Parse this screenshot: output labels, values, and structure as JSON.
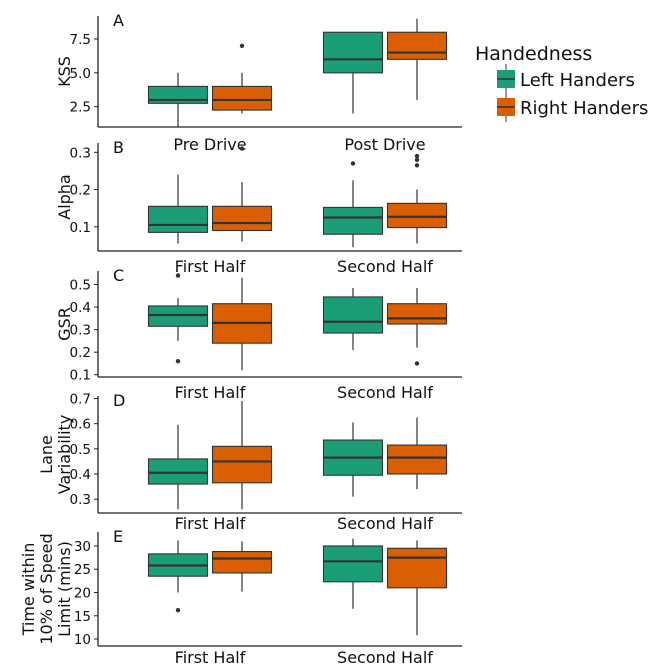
{
  "legend": {
    "title": "Handedness",
    "items": [
      {
        "label": "Left Handers",
        "color": "#1b9e77"
      },
      {
        "label": "Right Handers",
        "color": "#d95f02"
      }
    ]
  },
  "chart_data": [
    {
      "type": "box",
      "panel": "A",
      "ylabel": "KSS",
      "yticks": [
        2.5,
        5.0,
        7.5
      ],
      "ylim": [
        1,
        9.2
      ],
      "categories": [
        "Pre Drive",
        "Post Drive"
      ],
      "series": [
        {
          "name": "Left Handers",
          "boxes": [
            {
              "min": 1,
              "q1": 2.75,
              "median": 3,
              "q3": 4,
              "max": 5,
              "outliers": []
            },
            {
              "min": 2,
              "q1": 5,
              "median": 6,
              "q3": 8,
              "max": 8,
              "outliers": []
            }
          ]
        },
        {
          "name": "Right Handers",
          "boxes": [
            {
              "min": 2,
              "q1": 2.25,
              "median": 3,
              "q3": 4,
              "max": 5,
              "outliers": [
                7
              ]
            },
            {
              "min": 3,
              "q1": 6,
              "median": 6.5,
              "q3": 8,
              "max": 9,
              "outliers": []
            }
          ]
        }
      ]
    },
    {
      "type": "box",
      "panel": "B",
      "ylabel": "Alpha",
      "yticks": [
        0.1,
        0.2,
        0.3
      ],
      "ylim": [
        0.035,
        0.325
      ],
      "categories": [
        "First Half",
        "Second Half"
      ],
      "series": [
        {
          "name": "Left Handers",
          "boxes": [
            {
              "min": 0.055,
              "q1": 0.085,
              "median": 0.105,
              "q3": 0.155,
              "max": 0.24,
              "outliers": []
            },
            {
              "min": 0.045,
              "q1": 0.08,
              "median": 0.125,
              "q3": 0.152,
              "max": 0.225,
              "outliers": [
                0.27
              ]
            }
          ]
        },
        {
          "name": "Right Handers",
          "boxes": [
            {
              "min": 0.06,
              "q1": 0.09,
              "median": 0.11,
              "q3": 0.155,
              "max": 0.22,
              "outliers": [
                0.31
              ]
            },
            {
              "min": 0.055,
              "q1": 0.098,
              "median": 0.127,
              "q3": 0.163,
              "max": 0.2,
              "outliers": [
                0.265,
                0.28,
                0.29
              ]
            }
          ]
        }
      ]
    },
    {
      "type": "box",
      "panel": "C",
      "ylabel": "GSR",
      "yticks": [
        0.1,
        0.2,
        0.3,
        0.4,
        0.5
      ],
      "ylim": [
        0.09,
        0.56
      ],
      "categories": [
        "First Half",
        "Second Half"
      ],
      "series": [
        {
          "name": "Left Handers",
          "boxes": [
            {
              "min": 0.25,
              "q1": 0.315,
              "median": 0.365,
              "q3": 0.405,
              "max": 0.44,
              "outliers": [
                0.54,
                0.16
              ]
            },
            {
              "min": 0.21,
              "q1": 0.285,
              "median": 0.335,
              "q3": 0.445,
              "max": 0.485,
              "outliers": []
            }
          ]
        },
        {
          "name": "Right Handers",
          "boxes": [
            {
              "min": 0.12,
              "q1": 0.24,
              "median": 0.33,
              "q3": 0.415,
              "max": 0.53,
              "outliers": []
            },
            {
              "min": 0.22,
              "q1": 0.325,
              "median": 0.35,
              "q3": 0.415,
              "max": 0.485,
              "outliers": [
                0.15
              ]
            }
          ]
        }
      ]
    },
    {
      "type": "box",
      "panel": "D",
      "ylabel": "Lane Variability",
      "yticks": [
        0.3,
        0.4,
        0.5,
        0.6,
        0.7
      ],
      "ylim": [
        0.245,
        0.71
      ],
      "categories": [
        "First Half",
        "Second Half"
      ],
      "series": [
        {
          "name": "Left Handers",
          "boxes": [
            {
              "min": 0.26,
              "q1": 0.36,
              "median": 0.405,
              "q3": 0.46,
              "max": 0.595,
              "outliers": []
            },
            {
              "min": 0.31,
              "q1": 0.395,
              "median": 0.465,
              "q3": 0.535,
              "max": 0.605,
              "outliers": []
            }
          ]
        },
        {
          "name": "Right Handers",
          "boxes": [
            {
              "min": 0.26,
              "q1": 0.365,
              "median": 0.45,
              "q3": 0.51,
              "max": 0.69,
              "outliers": []
            },
            {
              "min": 0.34,
              "q1": 0.4,
              "median": 0.465,
              "q3": 0.515,
              "max": 0.625,
              "outliers": []
            }
          ]
        }
      ]
    },
    {
      "type": "box",
      "panel": "E",
      "ylabel": "Time within 10% of Speed Limit (mins)",
      "ylabel_lines": [
        "Time within",
        "10% of Speed",
        "Limit (mins)"
      ],
      "yticks": [
        10,
        15,
        20,
        25,
        30
      ],
      "ylim": [
        8.5,
        33
      ],
      "categories": [
        "First Half",
        "Second Half"
      ],
      "series": [
        {
          "name": "Left Handers",
          "boxes": [
            {
              "min": 20,
              "q1": 23.5,
              "median": 25.8,
              "q3": 28.3,
              "max": 31.2,
              "outliers": [
                16.2
              ]
            },
            {
              "min": 16.5,
              "q1": 22.3,
              "median": 26.7,
              "q3": 30,
              "max": 31.6,
              "outliers": []
            }
          ]
        },
        {
          "name": "Right Handers",
          "boxes": [
            {
              "min": 20.2,
              "q1": 24.2,
              "median": 27.3,
              "q3": 28.8,
              "max": 31,
              "outliers": []
            },
            {
              "min": 10.8,
              "q1": 21,
              "median": 27.5,
              "q3": 29.5,
              "max": 31.2,
              "outliers": []
            }
          ]
        }
      ]
    }
  ]
}
